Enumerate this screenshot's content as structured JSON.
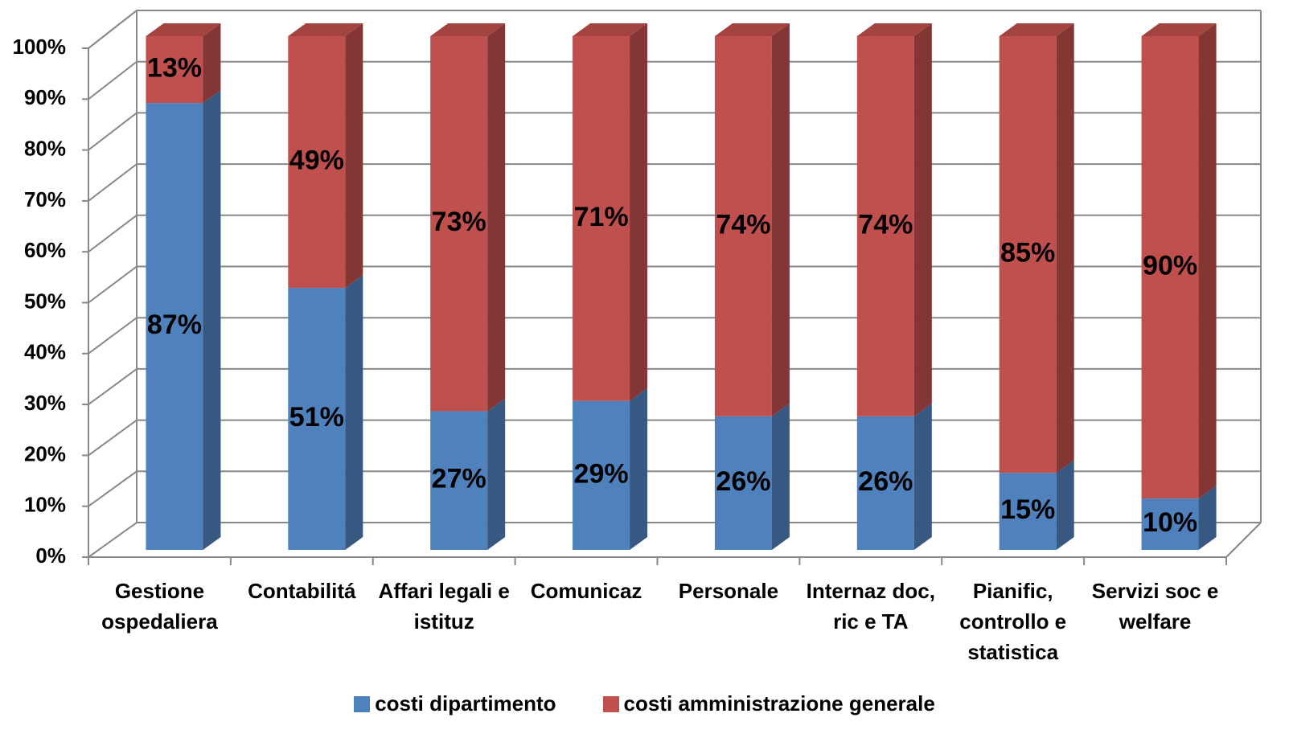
{
  "chart_data": {
    "type": "stacked-bar-3d",
    "categories": [
      "Gestione ospedaliera",
      "Contabilitá",
      "Affari legali e istituz",
      "Comunicaz",
      "Personale",
      "Internaz doc, ric e TA",
      "Pianific, controllo e statistica",
      "Servizi soc e welfare"
    ],
    "series": [
      {
        "name": "costi dipartimento",
        "color": "#4f81bd",
        "values": [
          87,
          51,
          27,
          29,
          26,
          26,
          15,
          10
        ],
        "value_labels": [
          "87%",
          "51%",
          "27%",
          "29%",
          "26%",
          "26%",
          "15%",
          "10%"
        ]
      },
      {
        "name": "costi amministrazione generale",
        "color": "#c0504d",
        "values": [
          13,
          49,
          73,
          71,
          74,
          74,
          85,
          90
        ],
        "value_labels": [
          "13%",
          "49%",
          "73%",
          "71%",
          "74%",
          "74%",
          "85%",
          "90%"
        ]
      }
    ],
    "ylim": [
      0,
      100
    ],
    "yticks": [
      {
        "value": 0,
        "label": "0%"
      },
      {
        "value": 10,
        "label": "10%"
      },
      {
        "value": 20,
        "label": "20%"
      },
      {
        "value": 30,
        "label": "30%"
      },
      {
        "value": 40,
        "label": "40%"
      },
      {
        "value": 50,
        "label": "50%"
      },
      {
        "value": 60,
        "label": "60%"
      },
      {
        "value": 70,
        "label": "70%"
      },
      {
        "value": 80,
        "label": "80%"
      },
      {
        "value": 90,
        "label": "90%"
      },
      {
        "value": 100,
        "label": "100%"
      }
    ],
    "grid": true
  }
}
